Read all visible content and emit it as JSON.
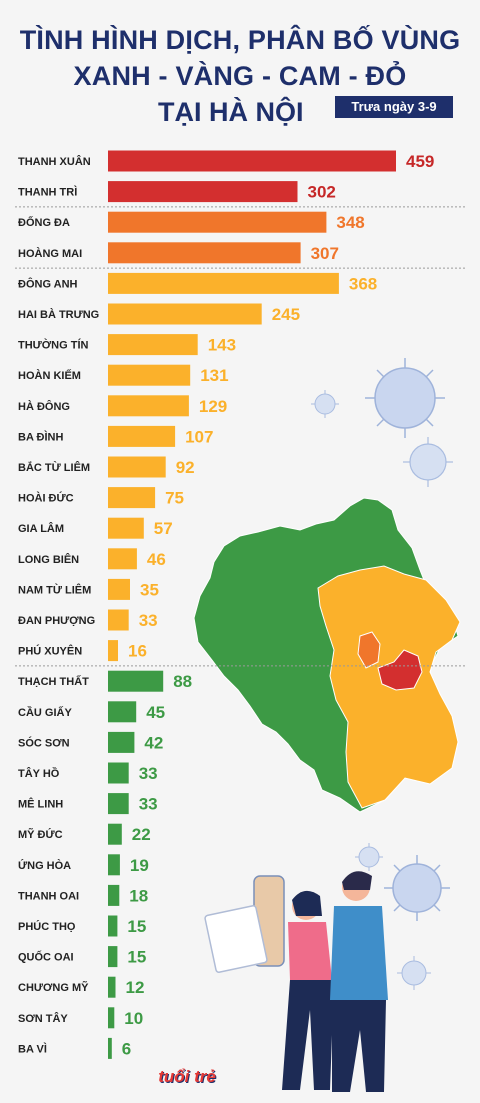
{
  "title": {
    "line1": "TÌNH HÌNH DỊCH, PHÂN BỐ VÙNG",
    "line2": "XANH - VÀNG - CAM - ĐỎ",
    "line3": "TẠI HÀ NỘI"
  },
  "date_tag": "Trưa ngày 3-9",
  "logo_text": "tuổi trẻ",
  "colors": {
    "red": "#d32f2f",
    "orange": "#f0762b",
    "yellow": "#fbb12b",
    "green": "#3d9a45",
    "title": "#1e2f6b",
    "divider": "#9a9a9a"
  },
  "chart_data": {
    "type": "bar",
    "orientation": "horizontal",
    "title": "TÌNH HÌNH DỊCH, PHÂN BỐ VÙNG XANH - VÀNG - CAM - ĐỎ TẠI HÀ NỘI",
    "subtitle": "Trưa ngày 3-9",
    "categories": [
      "THANH XUÂN",
      "THANH TRÌ",
      "ĐỐNG ĐA",
      "HOÀNG MAI",
      "ĐÔNG ANH",
      "HAI BÀ TRƯNG",
      "THƯỜNG TÍN",
      "HOÀN KIẾM",
      "HÀ ĐÔNG",
      "BA ĐÌNH",
      "BẮC TỪ LIÊM",
      "HOÀI ĐỨC",
      "GIA LÂM",
      "LONG BIÊN",
      "NAM TỪ LIÊM",
      "ĐAN PHƯỢNG",
      "PHÚ XUYÊN",
      "THẠCH THẤT",
      "CẦU GIẤY",
      "SÓC SƠN",
      "TÂY HỒ",
      "MÊ LINH",
      "MỸ ĐỨC",
      "ỨNG HÒA",
      "THANH OAI",
      "PHÚC THỌ",
      "QUỐC OAI",
      "CHƯƠNG MỸ",
      "SƠN TÂY",
      "BA VÌ"
    ],
    "values": [
      459,
      302,
      348,
      307,
      368,
      245,
      143,
      131,
      129,
      107,
      92,
      75,
      57,
      46,
      35,
      33,
      16,
      88,
      45,
      42,
      33,
      33,
      22,
      19,
      18,
      15,
      15,
      12,
      10,
      6
    ],
    "zones": [
      "red",
      "red",
      "orange",
      "orange",
      "yellow",
      "yellow",
      "yellow",
      "yellow",
      "yellow",
      "yellow",
      "yellow",
      "yellow",
      "yellow",
      "yellow",
      "yellow",
      "yellow",
      "yellow",
      "green",
      "green",
      "green",
      "green",
      "green",
      "green",
      "green",
      "green",
      "green",
      "green",
      "green",
      "green",
      "green"
    ],
    "xlabel": "",
    "ylabel": "",
    "grid": false,
    "legend": "none"
  }
}
